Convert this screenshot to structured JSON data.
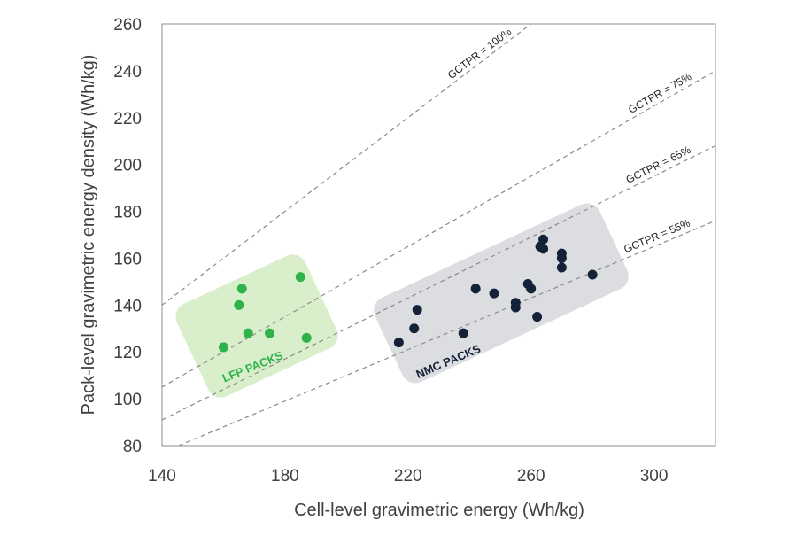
{
  "chart_data": {
    "type": "scatter",
    "title": "",
    "xlabel": "Cell-level gravimetric energy (Wh/kg)",
    "ylabel": "Pack-level gravimetric energy density (Wh/kg)",
    "xlim": [
      140,
      320
    ],
    "ylim": [
      80,
      260
    ],
    "x_ticks": [
      140,
      180,
      220,
      260,
      300
    ],
    "y_ticks": [
      80,
      100,
      120,
      140,
      160,
      180,
      200,
      220,
      240,
      260
    ],
    "grid": false,
    "reference_lines": [
      {
        "label": "GCTPR = 100%",
        "ratio": 1.0
      },
      {
        "label": "GCTPR = 75%",
        "ratio": 0.75
      },
      {
        "label": "GCTPR = 65%",
        "ratio": 0.65
      },
      {
        "label": "GCTPR = 55%",
        "ratio": 0.55
      }
    ],
    "series": [
      {
        "name": "LFP PACKS",
        "color": "#2db34a",
        "region_color": "#d9eecb",
        "points": [
          {
            "x": 160,
            "y": 122
          },
          {
            "x": 165,
            "y": 140
          },
          {
            "x": 166,
            "y": 147
          },
          {
            "x": 168,
            "y": 128
          },
          {
            "x": 175,
            "y": 128
          },
          {
            "x": 185,
            "y": 152
          },
          {
            "x": 187,
            "y": 126
          }
        ]
      },
      {
        "name": "NMC PACKS",
        "color": "#132238",
        "region_color": "#dcdde1",
        "points": [
          {
            "x": 217,
            "y": 124
          },
          {
            "x": 222,
            "y": 130
          },
          {
            "x": 223,
            "y": 138
          },
          {
            "x": 238,
            "y": 128
          },
          {
            "x": 242,
            "y": 147
          },
          {
            "x": 248,
            "y": 145
          },
          {
            "x": 255,
            "y": 141
          },
          {
            "x": 255,
            "y": 139
          },
          {
            "x": 259,
            "y": 149
          },
          {
            "x": 260,
            "y": 147
          },
          {
            "x": 262,
            "y": 135
          },
          {
            "x": 263,
            "y": 165
          },
          {
            "x": 264,
            "y": 168
          },
          {
            "x": 264,
            "y": 164
          },
          {
            "x": 270,
            "y": 162
          },
          {
            "x": 270,
            "y": 160
          },
          {
            "x": 270,
            "y": 156
          },
          {
            "x": 280,
            "y": 153
          }
        ]
      }
    ]
  }
}
